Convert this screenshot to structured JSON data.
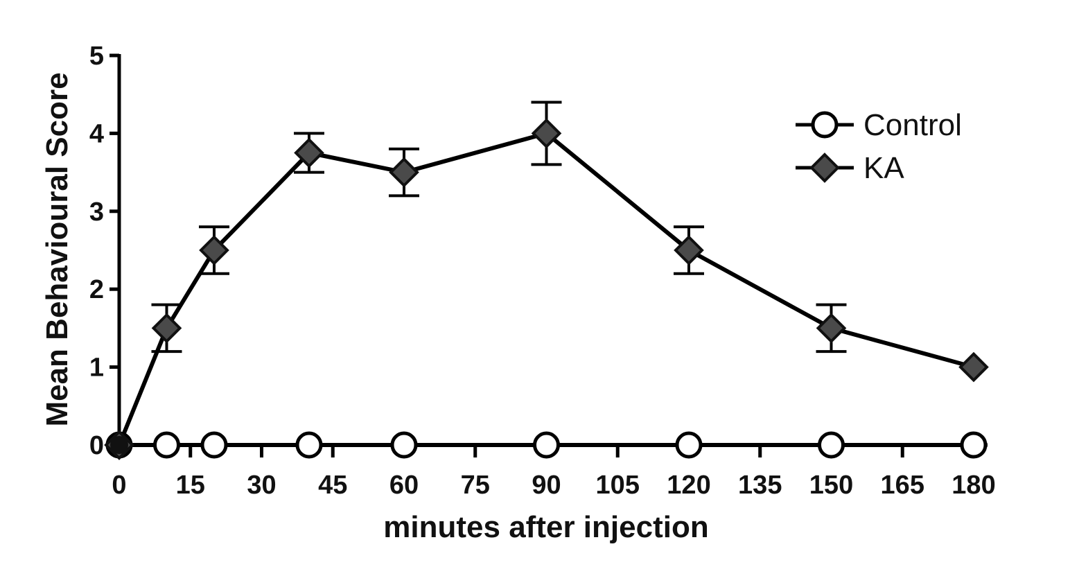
{
  "chart_data": {
    "type": "line",
    "xlabel": "minutes after injection",
    "ylabel": "Mean Behavioural Score",
    "xlim": [
      0,
      180
    ],
    "ylim": [
      0,
      5
    ],
    "xticks": [
      0,
      15,
      30,
      45,
      60,
      75,
      90,
      105,
      120,
      135,
      150,
      165,
      180
    ],
    "yticks": [
      0,
      1,
      2,
      3,
      4,
      5
    ],
    "grid": false,
    "legend_position": "top-right",
    "series": [
      {
        "name": "Control",
        "marker": "open-circle",
        "color": "#000000",
        "x": [
          0,
          10,
          20,
          40,
          60,
          90,
          120,
          150,
          180
        ],
        "y": [
          0,
          0,
          0,
          0,
          0,
          0,
          0,
          0,
          0
        ],
        "error": [
          0,
          0,
          0,
          0,
          0,
          0,
          0,
          0,
          0
        ]
      },
      {
        "name": "KA",
        "marker": "filled-diamond",
        "color": "#4a4a4a",
        "x": [
          0,
          10,
          20,
          40,
          60,
          90,
          120,
          150,
          180
        ],
        "y": [
          0,
          1.5,
          2.5,
          3.75,
          3.5,
          4.0,
          2.5,
          1.5,
          1.0
        ],
        "error": [
          0,
          0.3,
          0.3,
          0.25,
          0.3,
          0.4,
          0.3,
          0.3,
          0
        ]
      }
    ]
  }
}
